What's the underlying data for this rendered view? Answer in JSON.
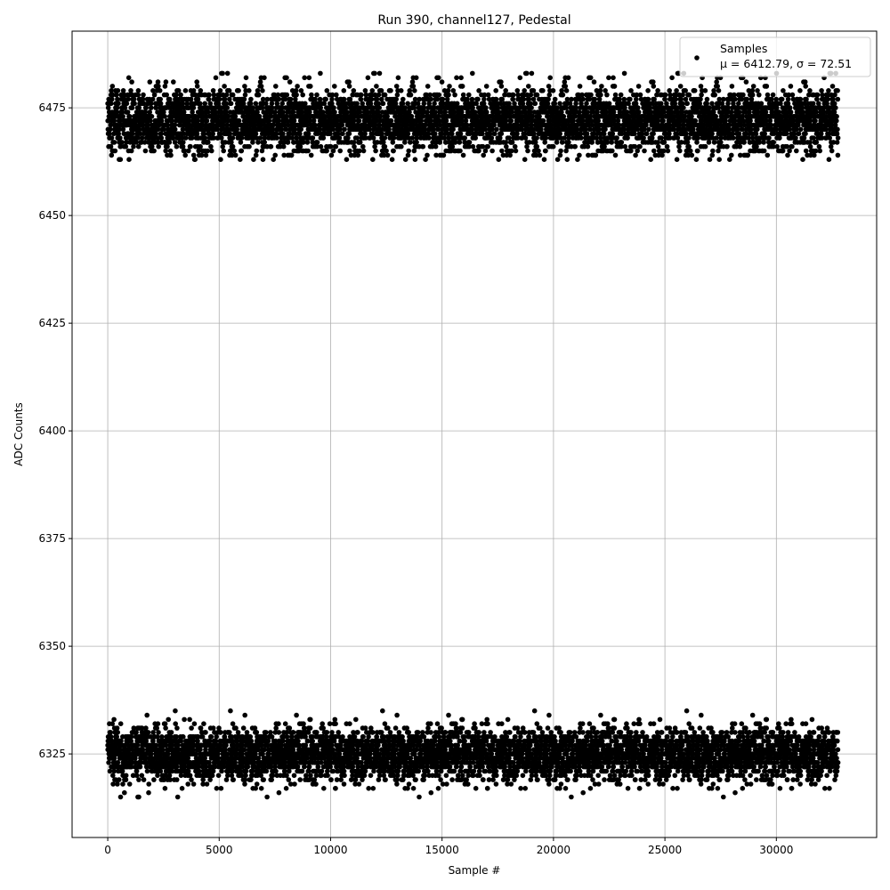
{
  "chart_data": {
    "type": "scatter",
    "title": "Run 390, channel127, Pedestal",
    "xlabel": "Sample #",
    "ylabel": "ADC Counts",
    "xlim": [
      -1600,
      34500
    ],
    "ylim": [
      6305.6,
      6492.8
    ],
    "xticks": [
      0,
      5000,
      10000,
      15000,
      20000,
      25000,
      30000
    ],
    "yticks": [
      6325,
      6350,
      6375,
      6400,
      6425,
      6450,
      6475
    ],
    "grid": true,
    "legend": {
      "placement": "top-right",
      "entries": [
        "Samples",
        "μ = 6412.79, σ = 72.51"
      ]
    },
    "marker_color": "#000000",
    "series": [
      {
        "name": "Samples",
        "x_range": [
          0,
          32767
        ],
        "clusters": [
          {
            "center": 6472,
            "typical_min": 6467,
            "typical_max": 6479,
            "min": 6463,
            "max": 6483,
            "fraction": 0.58
          },
          {
            "center": 6325,
            "typical_min": 6320,
            "typical_max": 6330,
            "min": 6314,
            "max": 6336,
            "fraction": 0.42
          }
        ]
      }
    ],
    "stats": {
      "mean": 6412.79,
      "sigma": 72.51
    }
  }
}
